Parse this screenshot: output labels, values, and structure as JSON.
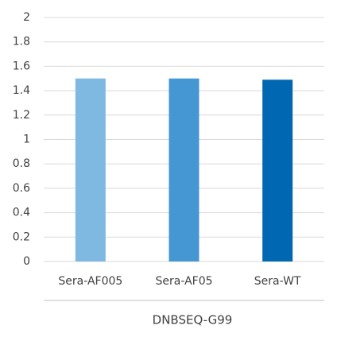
{
  "chart_data": {
    "type": "bar",
    "xlabel": "DNBSEQ-G99",
    "categories": [
      "Sera-AF005",
      "Sera-AF05",
      "Sera-WT"
    ],
    "values": [
      1.5,
      1.5,
      1.49
    ],
    "colors": [
      "#7fb8e0",
      "#4597d3",
      "#0068b3"
    ],
    "ylim": [
      0,
      2
    ],
    "yticks": [
      0,
      0.2,
      0.4,
      0.6,
      0.8,
      1,
      1.2,
      1.4,
      1.6,
      1.8,
      2
    ],
    "grid": true
  }
}
